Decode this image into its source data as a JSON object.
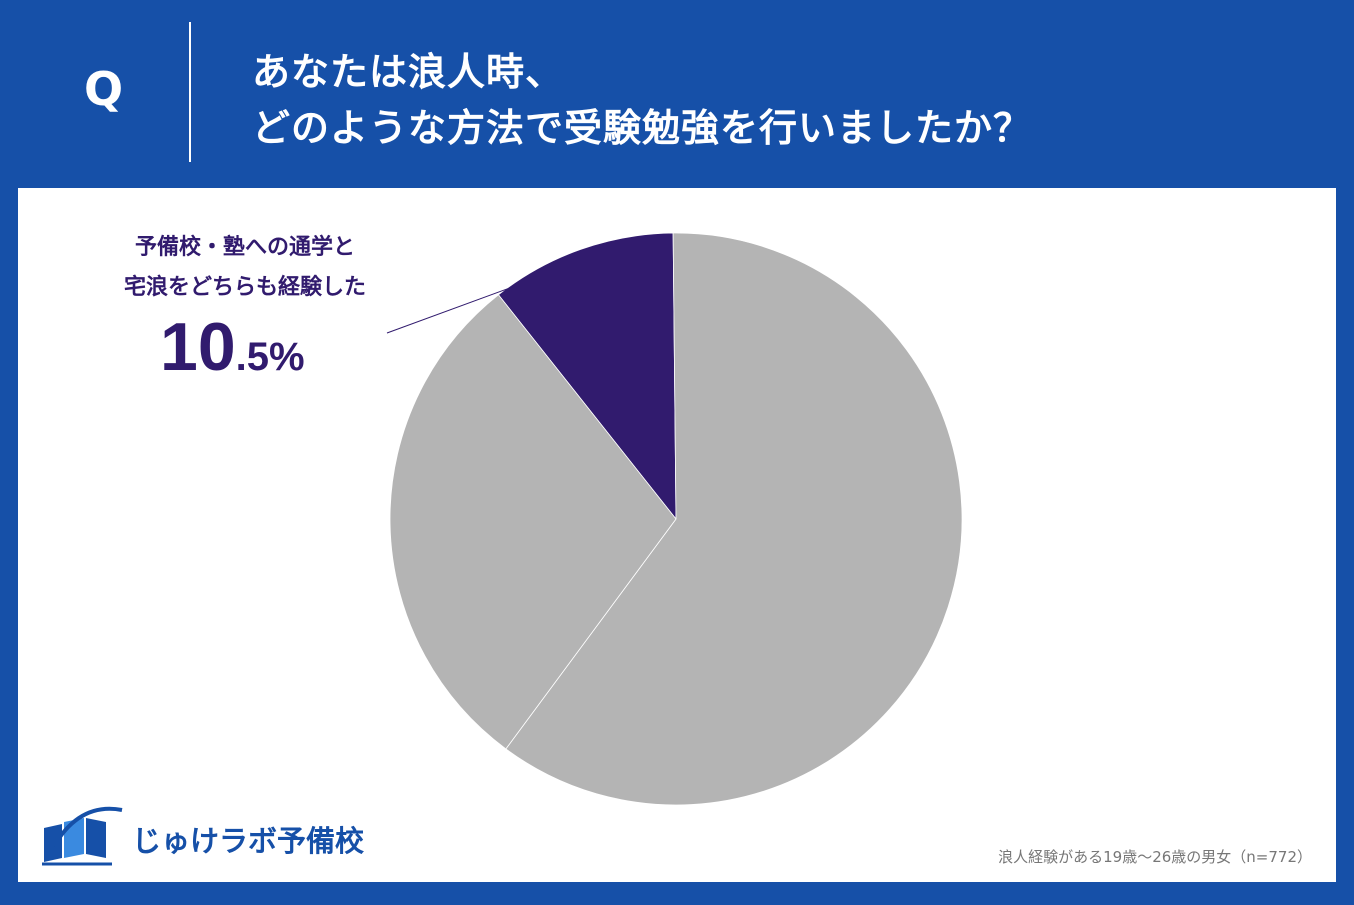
{
  "header": {
    "q_mark": "Q",
    "question_line1": "あなたは浪人時、",
    "question_line2": "どのような方法で受験勉強を行いましたか？"
  },
  "chart_data": {
    "type": "pie",
    "slices": [
      {
        "label": "予備校・塾への通学と宅浪をどちらも経験した",
        "value": 10.5,
        "color": "#311b6e",
        "labeled": true
      },
      {
        "label": "",
        "value": 60.3,
        "color": "#b4b4b4",
        "labeled": false
      },
      {
        "label": "",
        "value": 29.2,
        "color": "#b4b4b4",
        "labeled": false
      }
    ],
    "callout": {
      "line1": "予備校・塾への通学と",
      "line2": "宅浪をどちらも経験した",
      "value_int": "10",
      "value_dec": ".5%"
    }
  },
  "footer": {
    "logo_text": "じゅけラボ予備校",
    "note": "浪人経験がある19歳～26歳の男女（n=772）"
  },
  "colors": {
    "background": "#1650a8",
    "accent": "#311b6e",
    "slice_gray": "#b4b4b4"
  }
}
